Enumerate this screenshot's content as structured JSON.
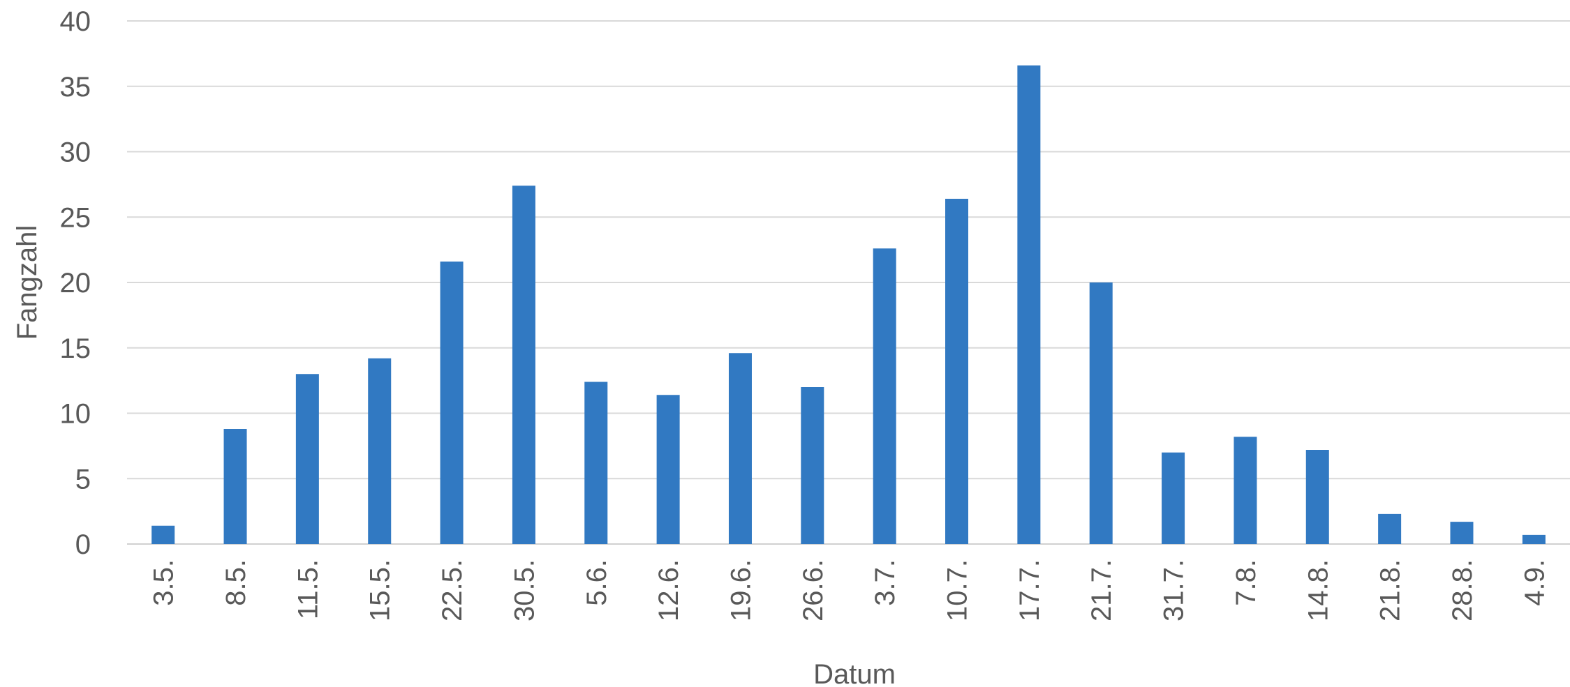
{
  "chart_data": {
    "type": "bar",
    "title": "",
    "xlabel": "Datum",
    "ylabel": "Fangzahl",
    "ylim": [
      0,
      40
    ],
    "yticks": [
      0,
      5,
      10,
      15,
      20,
      25,
      30,
      35,
      40
    ],
    "grid": true,
    "legend": "none",
    "bar_color": "#3179C2",
    "categories": [
      "3.5.",
      "8.5.",
      "11.5.",
      "15.5.",
      "22.5.",
      "30.5.",
      "5.6.",
      "12.6.",
      "19.6.",
      "26.6.",
      "3.7.",
      "10.7.",
      "17.7.",
      "21.7.",
      "31.7.",
      "7.8.",
      "14.8.",
      "21.8.",
      "28.8.",
      "4.9."
    ],
    "values": [
      1.4,
      8.8,
      13.0,
      14.2,
      21.6,
      27.4,
      12.4,
      11.4,
      14.6,
      12.0,
      22.6,
      26.4,
      36.6,
      20.0,
      7.0,
      8.2,
      7.2,
      2.3,
      1.7,
      0.7
    ]
  }
}
